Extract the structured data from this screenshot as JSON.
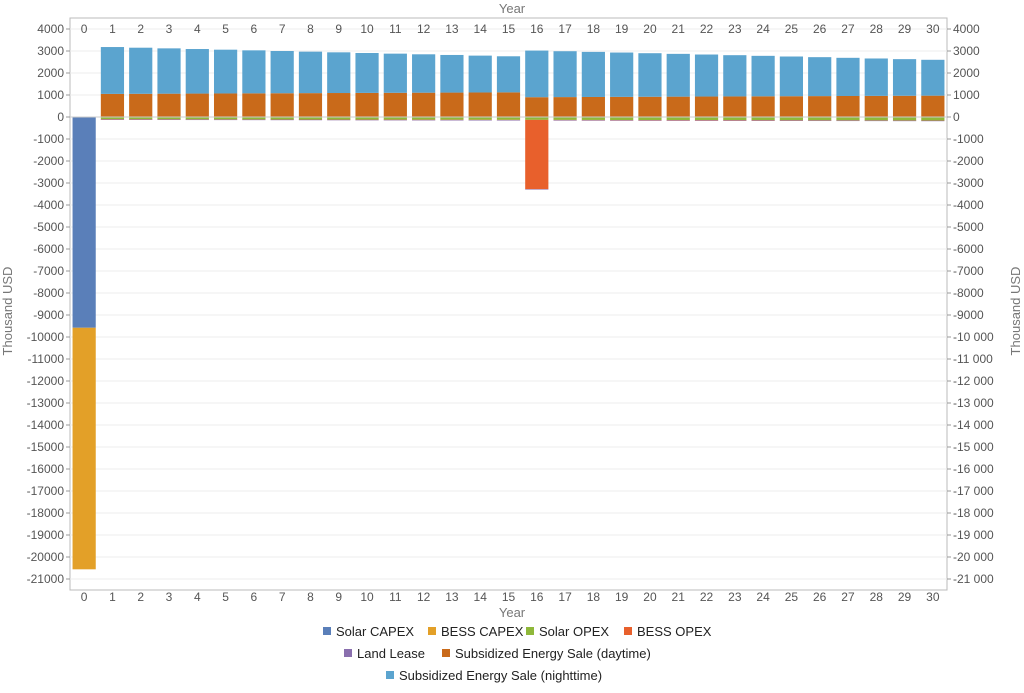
{
  "chart_data": {
    "type": "bar",
    "stacked": true,
    "xlabel": "Year",
    "ylabel": "Thousand USD",
    "ylim": [
      -21500,
      4500
    ],
    "y_ticks": [
      4000,
      3000,
      2000,
      1000,
      0,
      -1000,
      -2000,
      -3000,
      -4000,
      -5000,
      -6000,
      -7000,
      -8000,
      -9000,
      -10000,
      -11000,
      -12000,
      -13000,
      -14000,
      -15000,
      -16000,
      -17000,
      -18000,
      -19000,
      -20000,
      -21000
    ],
    "y_tick_labels_left": [
      "4000",
      "3000",
      "2000",
      "1000",
      "0",
      "-1000",
      "-2000",
      "-3000",
      "-4000",
      "-5000",
      "-6000",
      "-7000",
      "-8000",
      "-9000",
      "-10000",
      "-11000",
      "-12000",
      "-13000",
      "-14000",
      "-15000",
      "-16000",
      "-17000",
      "-18000",
      "-19000",
      "-20000",
      "-21000"
    ],
    "y_tick_labels_right": [
      "4000",
      "3000",
      "2000",
      "1000",
      "0",
      "-1000",
      "-2000",
      "-3000",
      "-4000",
      "-5000",
      "-6000",
      "-7000",
      "-8000",
      "-9000",
      "-10 000",
      "-11 000",
      "-12 000",
      "-13 000",
      "-14 000",
      "-15 000",
      "-16 000",
      "-17 000",
      "-18 000",
      "-19 000",
      "-20 000",
      "-21 000"
    ],
    "grid": true,
    "legend_position": "bottom",
    "categories": [
      "0",
      "1",
      "2",
      "3",
      "4",
      "5",
      "6",
      "7",
      "8",
      "9",
      "10",
      "11",
      "12",
      "13",
      "14",
      "15",
      "16",
      "17",
      "18",
      "19",
      "20",
      "21",
      "22",
      "23",
      "24",
      "25",
      "26",
      "27",
      "28",
      "29",
      "30"
    ],
    "series": [
      {
        "name": "Solar CAPEX",
        "color": "#5a7fb9",
        "values": [
          -9580,
          0,
          0,
          0,
          0,
          0,
          0,
          0,
          0,
          0,
          0,
          0,
          0,
          0,
          0,
          0,
          0,
          0,
          0,
          0,
          0,
          0,
          0,
          0,
          0,
          0,
          0,
          0,
          0,
          0,
          0
        ]
      },
      {
        "name": "BESS CAPEX",
        "color": "#e3a028",
        "values": [
          -10980,
          0,
          0,
          0,
          0,
          0,
          0,
          0,
          0,
          0,
          0,
          0,
          0,
          0,
          0,
          0,
          0,
          0,
          0,
          0,
          0,
          0,
          0,
          0,
          0,
          0,
          0,
          0,
          0,
          0,
          0
        ]
      },
      {
        "name": "Solar OPEX",
        "color": "#8fb83a",
        "values": [
          0,
          -100,
          -102,
          -104,
          -106,
          -108,
          -110,
          -112,
          -114,
          -116,
          -118,
          -120,
          -122,
          -124,
          -126,
          -128,
          -130,
          -132,
          -134,
          -136,
          -138,
          -140,
          -142,
          -144,
          -146,
          -148,
          -150,
          -152,
          -154,
          -156,
          -158
        ]
      },
      {
        "name": "BESS OPEX",
        "color": "#e8602c",
        "values": [
          0,
          -10,
          -10,
          -10,
          -10,
          -10,
          -10,
          -10,
          -10,
          -10,
          -10,
          -10,
          -10,
          -10,
          -10,
          -10,
          -3150,
          -10,
          -10,
          -10,
          -10,
          -10,
          -10,
          -10,
          -10,
          -10,
          -10,
          -10,
          -10,
          -10,
          -10
        ]
      },
      {
        "name": "Land Lease",
        "color": "#8a6fae",
        "values": [
          0,
          -15,
          -15,
          -15,
          -15,
          -15,
          -15,
          -15,
          -15,
          -15,
          -15,
          -15,
          -15,
          -15,
          -15,
          -15,
          -15,
          -15,
          -15,
          -15,
          -15,
          -15,
          -15,
          -15,
          -15,
          -15,
          -15,
          -15,
          -15,
          -15,
          -15
        ]
      },
      {
        "name": "Subsidized Energy Sale (daytime)",
        "color": "#c96a1a",
        "values": [
          0,
          1050,
          1055,
          1060,
          1065,
          1070,
          1075,
          1080,
          1085,
          1090,
          1095,
          1100,
          1105,
          1110,
          1115,
          1120,
          900,
          905,
          910,
          915,
          920,
          925,
          930,
          935,
          940,
          945,
          950,
          955,
          960,
          965,
          970
        ]
      },
      {
        "name": "Subsidized Energy Sale (nighttime)",
        "color": "#5ba4cf",
        "values": [
          0,
          2130,
          2095,
          2060,
          2025,
          1990,
          1955,
          1920,
          1885,
          1850,
          1815,
          1780,
          1745,
          1710,
          1675,
          1640,
          2120,
          2085,
          2050,
          2015,
          1980,
          1945,
          1910,
          1875,
          1840,
          1805,
          1770,
          1735,
          1700,
          1665,
          1630
        ]
      }
    ]
  }
}
